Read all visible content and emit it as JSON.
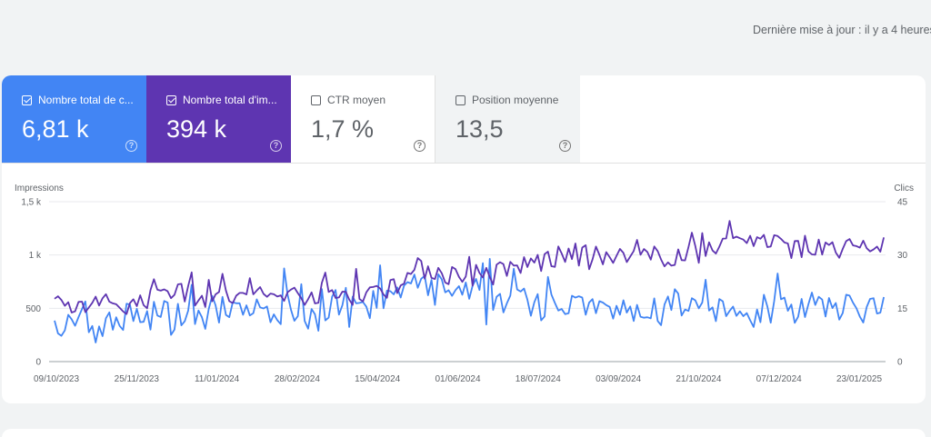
{
  "header": {
    "last_update": "Dernière mise à jour : il y a 4 heures"
  },
  "metrics": [
    {
      "label": "Nombre total de c...",
      "value": "6,81 k",
      "selected": true,
      "color": "#4285f4"
    },
    {
      "label": "Nombre total d'im...",
      "value": "394 k",
      "selected": true,
      "color": "#5e35b1"
    },
    {
      "label": "CTR moyen",
      "value": "1,7 %",
      "selected": false,
      "color": "#ffffff"
    },
    {
      "label": "Position moyenne",
      "value": "13,5",
      "selected": false,
      "color": "#f1f3f4"
    }
  ],
  "help_glyph": "?",
  "chart_data": {
    "type": "line",
    "left_axis": {
      "label": "Impressions",
      "ticks": [
        "0",
        "500",
        "1 k",
        "1,5 k"
      ],
      "ylim": [
        0,
        1500
      ]
    },
    "right_axis": {
      "label": "Clics",
      "ticks": [
        "0",
        "15",
        "30",
        "45"
      ],
      "ylim": [
        0,
        45
      ]
    },
    "x_tick_labels": [
      "09/10/2023",
      "25/11/2023",
      "11/01/2024",
      "28/02/2024",
      "15/04/2024",
      "01/06/2024",
      "18/07/2024",
      "03/09/2024",
      "21/10/2024",
      "07/12/2024",
      "23/01/2025"
    ],
    "x_range": [
      "2023-10-09",
      "2025-02-05"
    ],
    "grid": true,
    "series": [
      {
        "name": "Nombre total d'impressions",
        "color": "#5e35b1",
        "axis": "left",
        "keyframes": [
          [
            "2023-10-09",
            500
          ],
          [
            "2023-11-25",
            540
          ],
          [
            "2023-12-10",
            700
          ],
          [
            "2024-01-11",
            600
          ],
          [
            "2024-02-28",
            640
          ],
          [
            "2024-03-20",
            620
          ],
          [
            "2024-04-15",
            660
          ],
          [
            "2024-05-10",
            880
          ],
          [
            "2024-06-01",
            800
          ],
          [
            "2024-06-20",
            820
          ],
          [
            "2024-07-18",
            950
          ],
          [
            "2024-08-10",
            990
          ],
          [
            "2024-09-03",
            950
          ],
          [
            "2024-10-21",
            1010
          ],
          [
            "2024-11-10",
            1170
          ],
          [
            "2024-12-07",
            1100
          ],
          [
            "2024-12-25",
            1030
          ],
          [
            "2025-01-23",
            1060
          ],
          [
            "2025-02-05",
            1080
          ]
        ]
      },
      {
        "name": "Nombre total de clics",
        "color": "#4285f4",
        "axis": "right",
        "keyframes": [
          [
            "2023-10-09",
            9
          ],
          [
            "2023-11-25",
            12
          ],
          [
            "2024-01-11",
            14
          ],
          [
            "2024-02-28",
            15
          ],
          [
            "2024-04-15",
            17
          ],
          [
            "2024-05-10",
            21
          ],
          [
            "2024-06-01",
            19
          ],
          [
            "2024-07-18",
            17
          ],
          [
            "2024-09-03",
            14
          ],
          [
            "2024-10-21",
            14
          ],
          [
            "2024-12-07",
            15
          ],
          [
            "2025-01-23",
            15
          ],
          [
            "2025-02-05",
            14
          ]
        ]
      }
    ]
  }
}
